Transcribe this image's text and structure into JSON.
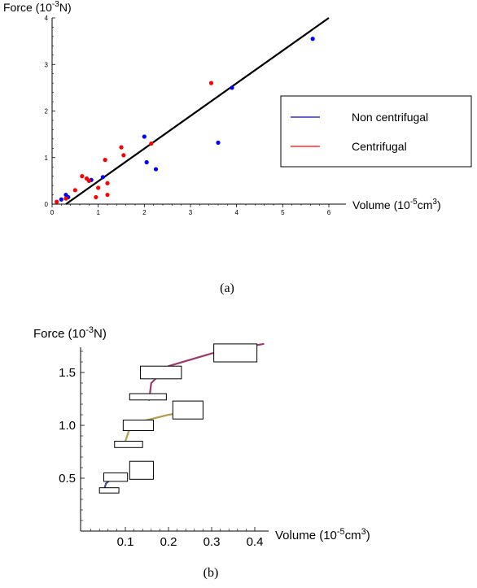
{
  "chart_data": [
    {
      "type": "scatter",
      "caption": "(a)",
      "ylabel": "Force (10",
      "ylabel_exp": "-3",
      "ylabel_unit": "N)",
      "xlabel": "Volume (10",
      "xlabel_exp": "-5",
      "xlabel_unit": "cm",
      "xlabel_unit_exp": "3",
      "xlabel_close": ")",
      "xlim": [
        0,
        6.3
      ],
      "ylim": [
        0,
        4.1
      ],
      "xticks": [
        0,
        1,
        2,
        3,
        4,
        5,
        6
      ],
      "yticks": [
        0,
        1,
        2,
        3,
        4
      ],
      "series": [
        {
          "name": "Non centrifugal",
          "color": "#0000ff",
          "points": [
            [
              0.2,
              0.1
            ],
            [
              0.3,
              0.2
            ],
            [
              0.35,
              0.15
            ],
            [
              0.85,
              0.52
            ],
            [
              1.1,
              0.58
            ],
            [
              2.0,
              1.45
            ],
            [
              2.05,
              0.9
            ],
            [
              2.25,
              0.75
            ],
            [
              3.6,
              1.32
            ],
            [
              3.9,
              2.5
            ],
            [
              5.65,
              3.55
            ]
          ]
        },
        {
          "name": "Centrifugal",
          "color": "#ff0000",
          "points": [
            [
              0.1,
              0.05
            ],
            [
              0.3,
              0.12
            ],
            [
              0.5,
              0.3
            ],
            [
              0.65,
              0.6
            ],
            [
              0.75,
              0.55
            ],
            [
              0.8,
              0.5
            ],
            [
              0.95,
              0.15
            ],
            [
              1.0,
              0.35
            ],
            [
              1.15,
              0.95
            ],
            [
              1.2,
              0.45
            ],
            [
              1.2,
              0.2
            ],
            [
              1.5,
              1.22
            ],
            [
              1.55,
              1.05
            ],
            [
              2.15,
              1.3
            ],
            [
              3.45,
              2.6
            ]
          ]
        }
      ],
      "fit_line": {
        "color": "#000000",
        "points": [
          [
            0.3,
            0
          ],
          [
            6.0,
            4.0
          ]
        ]
      },
      "legend_position": "right"
    },
    {
      "type": "line",
      "caption": "(b)",
      "ylabel": "Force (10",
      "ylabel_exp": "-3",
      "ylabel_unit": "N)",
      "xlabel": "Volume (10",
      "xlabel_exp": "-5",
      "xlabel_unit": "cm",
      "xlabel_unit_exp": "3",
      "xlabel_close": ")",
      "xlim": [
        0,
        0.42
      ],
      "ylim": [
        0,
        1.8
      ],
      "xticks": [
        0.1,
        0.2,
        0.3,
        0.4
      ],
      "xtick_labels": [
        "0.1",
        "0.2",
        "0.3",
        "0.4"
      ],
      "yticks": [
        0.5,
        1.0,
        1.5
      ],
      "ytick_labels": [
        "0.5",
        "1.0",
        "1.5"
      ],
      "series": [
        {
          "color": "#4b4b8f",
          "points": [
            [
              0.05,
              0.38
            ],
            [
              0.055,
              0.45
            ],
            [
              0.07,
              0.5
            ],
            [
              0.1,
              0.53
            ]
          ]
        },
        {
          "color": "#b0a04a",
          "points": [
            [
              0.1,
              0.85
            ],
            [
              0.11,
              0.97
            ],
            [
              0.14,
              1.04
            ],
            [
              0.2,
              1.1
            ],
            [
              0.23,
              1.12
            ]
          ]
        },
        {
          "color": "#9c3a6e",
          "points": [
            [
              0.155,
              1.24
            ],
            [
              0.16,
              1.4
            ],
            [
              0.2,
              1.56
            ],
            [
              0.3,
              1.68
            ],
            [
              0.42,
              1.77
            ]
          ]
        }
      ],
      "error_boxes": [
        {
          "x": [
            0.04,
            0.085
          ],
          "y": [
            0.36,
            0.41
          ]
        },
        {
          "x": [
            0.05,
            0.105
          ],
          "y": [
            0.47,
            0.55
          ]
        },
        {
          "x": [
            0.11,
            0.165
          ],
          "y": [
            0.49,
            0.66
          ]
        },
        {
          "x": [
            0.075,
            0.14
          ],
          "y": [
            0.79,
            0.85
          ]
        },
        {
          "x": [
            0.095,
            0.165
          ],
          "y": [
            0.95,
            1.05
          ]
        },
        {
          "x": [
            0.21,
            0.28
          ],
          "y": [
            1.06,
            1.23
          ]
        },
        {
          "x": [
            0.11,
            0.195
          ],
          "y": [
            1.24,
            1.3
          ]
        },
        {
          "x": [
            0.135,
            0.23
          ],
          "y": [
            1.44,
            1.56
          ]
        },
        {
          "x": [
            0.305,
            0.405
          ],
          "y": [
            1.6,
            1.77
          ]
        }
      ]
    }
  ]
}
